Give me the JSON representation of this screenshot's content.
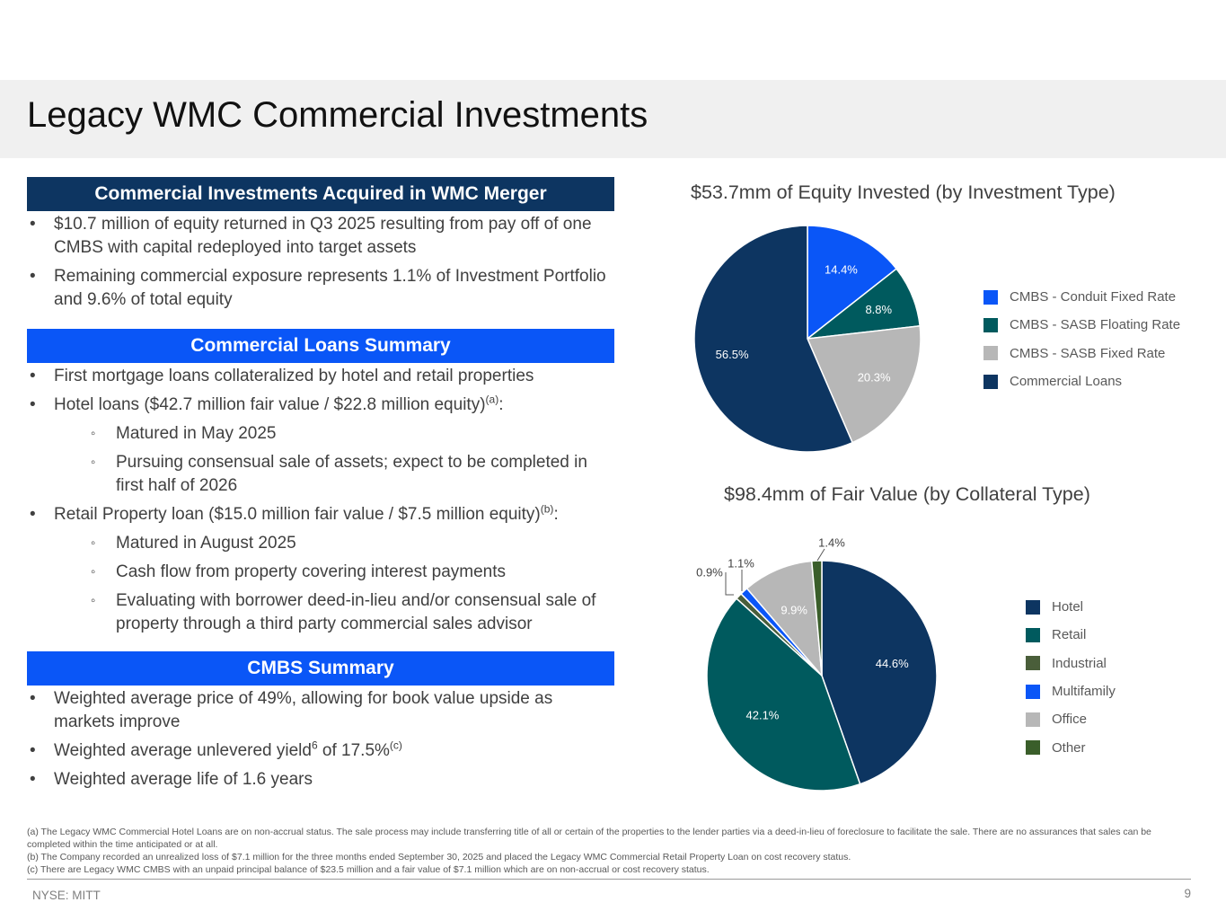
{
  "page": {
    "title": "Legacy WMC Commercial Investments",
    "footer_ticker": "NYSE: MITT",
    "page_number": "9"
  },
  "sections": {
    "merger": {
      "header": "Commercial Investments Acquired in WMC Merger",
      "bullets": [
        {
          "text": "$10.7 million of equity returned in Q3 2025 resulting from pay off of one CMBS with capital redeployed into target assets"
        },
        {
          "text": "Remaining commercial exposure represents 1.1% of Investment Portfolio and 9.6% of total equity"
        }
      ]
    },
    "loans": {
      "header": "Commercial Loans Summary",
      "bullets": [
        {
          "text": "First mortgage loans collateralized by hotel and retail properties"
        },
        {
          "text": "Hotel loans ($42.7 million fair value / $22.8 million equity)",
          "sup": "(a)",
          "after": ":"
        },
        {
          "text": "Matured in May 2025"
        },
        {
          "text": "Pursuing consensual sale of assets; expect to be completed in first half of 2026"
        },
        {
          "text": "Retail Property loan ($15.0 million fair value / $7.5 million equity)",
          "sup": "(b)",
          "after": ":"
        },
        {
          "text": "Matured in August 2025"
        },
        {
          "text": "Cash flow from property covering interest payments"
        },
        {
          "text": "Evaluating with borrower deed-in-lieu and/or consensual sale of property through a third party commercial sales advisor"
        }
      ]
    },
    "cmbs": {
      "header": "CMBS Summary",
      "bullets": [
        {
          "text": "Weighted average price of 49%, allowing for book value upside as markets improve"
        },
        {
          "text": "Weighted average unlevered yield",
          "sup": "6",
          "after": " of 17.5%",
          "sup2": "(c)"
        },
        {
          "text": "Weighted average life of 1.6 years"
        }
      ]
    }
  },
  "chart_data": [
    {
      "type": "pie",
      "title": "$53.7mm of Equity Invested (by Investment Type)",
      "categories": [
        "CMBS - Conduit Fixed Rate",
        "CMBS - SASB Floating Rate",
        "CMBS - SASB Fixed Rate",
        "Commercial Loans"
      ],
      "values": [
        14.4,
        8.8,
        20.3,
        56.5
      ],
      "labels": [
        "14.4%",
        "8.8%",
        "20.3%",
        "56.5%"
      ],
      "colors": [
        "#0a56f7",
        "#005a5e",
        "#b7b7b7",
        "#0d3561"
      ],
      "label_colors": [
        "#ffffff",
        "#ffffff",
        "#ffffff",
        "#ffffff"
      ],
      "legend_position": "right"
    },
    {
      "type": "pie",
      "title": "$98.4mm of Fair Value (by Collateral Type)",
      "categories": [
        "Hotel",
        "Retail",
        "Industrial",
        "Multifamily",
        "Office",
        "Other"
      ],
      "values": [
        44.6,
        42.1,
        0.9,
        1.1,
        9.9,
        1.4
      ],
      "labels": [
        "44.6%",
        "42.1%",
        "0.9%",
        "1.1%",
        "9.9%",
        "1.4%"
      ],
      "colors": [
        "#0d3561",
        "#005a5e",
        "#4a5e3a",
        "#0a56f7",
        "#b7b7b7",
        "#3a5e2a"
      ],
      "label_colors": [
        "#ffffff",
        "#ffffff",
        "#404040",
        "#404040",
        "#ffffff",
        "#404040"
      ],
      "legend_position": "right"
    }
  ],
  "footnotes": [
    "(a) The Legacy WMC Commercial Hotel Loans are on non-accrual status. The sale process may include transferring title of all or certain of the properties to the lender parties via a deed-in-lieu of foreclosure to facilitate the sale. There are no assurances that sales can be completed within the time anticipated or at all.",
    "(b) The Company recorded an unrealized loss of $7.1 million for the three months ended September 30, 2025 and placed the Legacy WMC Commercial Retail Property Loan on cost recovery status.",
    "(c) There are Legacy WMC CMBS with an unpaid principal balance of $23.5 million and a fair value of $7.1 million which are on non-accrual or cost recovery status."
  ]
}
